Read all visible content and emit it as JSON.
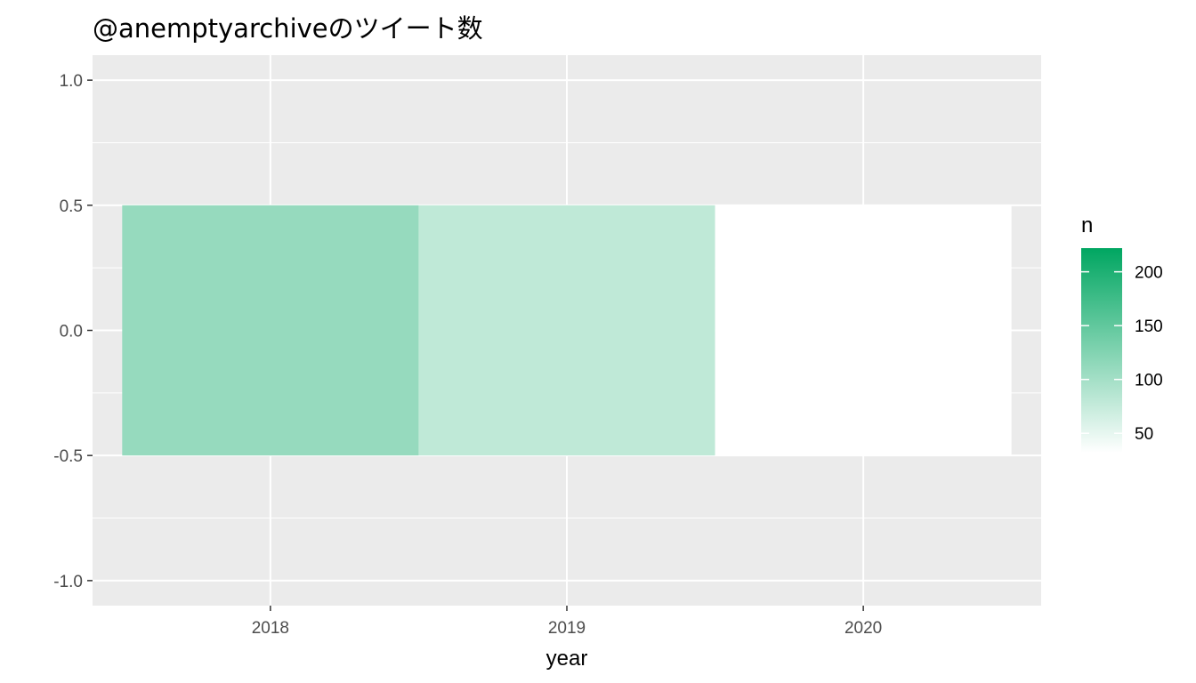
{
  "chart_data": {
    "type": "heatmap",
    "title": "@anemptyarchiveのツイート数",
    "xlabel": "year",
    "ylabel": "",
    "x": [
      "2018",
      "2019",
      "2020"
    ],
    "y_tick_labels": [
      "1.0",
      "0.5",
      "0.0",
      "-0.5",
      "-1.0"
    ],
    "y_ticks": [
      1.0,
      0.5,
      0.0,
      -0.5,
      -1.0
    ],
    "ylim": [
      -1.1,
      1.1
    ],
    "cells": [
      {
        "x": "2018",
        "y": 0,
        "n": 110
      },
      {
        "x": "2019",
        "y": 0,
        "n": 80
      },
      {
        "x": "2020",
        "y": 0,
        "n": 32
      }
    ],
    "legend": {
      "title": "n",
      "placement": "right",
      "breaks": [
        200,
        150,
        100,
        50
      ],
      "break_labels": [
        "200",
        "150",
        "100",
        "50"
      ],
      "range": [
        32,
        222
      ],
      "low_color": "#ffffff",
      "high_color": "#00a661"
    },
    "panel_background": "#ebebeb",
    "grid": true
  }
}
